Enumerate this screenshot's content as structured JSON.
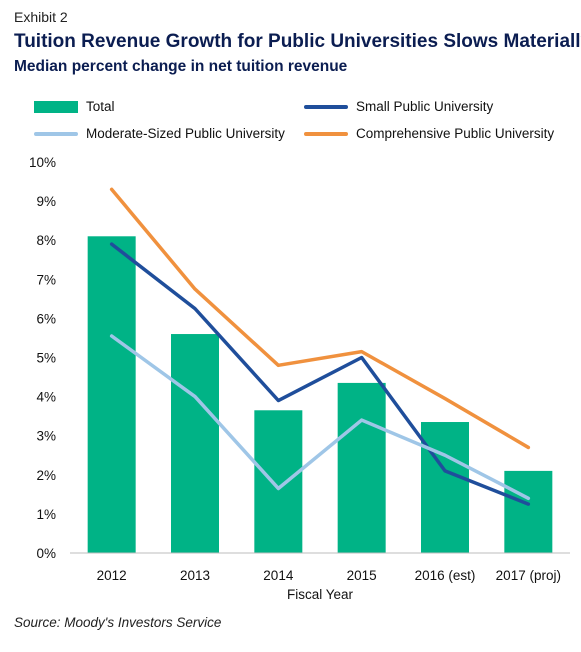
{
  "header": {
    "exhibit": "Exhibit 2",
    "title": "Tuition Revenue Growth for Public Universities Slows Materially",
    "subtitle": "Median percent change in net tuition revenue"
  },
  "source": "Source: Moody's Investors Service",
  "colors": {
    "total": "#00b386",
    "small": "#1f4e9b",
    "moderate": "#9fc6e7",
    "comprehensive": "#f0913e"
  },
  "chart_data": {
    "type": "bar",
    "title": "Tuition Revenue Growth for Public Universities Slows Materially",
    "subtitle": "Median percent change in net tuition revenue",
    "xlabel": "Fiscal Year",
    "ylabel": "",
    "categories": [
      "2012",
      "2013",
      "2014",
      "2015",
      "2016 (est)",
      "2017 (proj)"
    ],
    "ylim": [
      0,
      10
    ],
    "yticks": [
      "0%",
      "1%",
      "2%",
      "3%",
      "4%",
      "5%",
      "6%",
      "7%",
      "8%",
      "9%",
      "10%"
    ],
    "grid": false,
    "legend_position": "top",
    "series": [
      {
        "name": "Total",
        "type": "bar",
        "values": [
          8.1,
          5.6,
          3.65,
          4.35,
          3.35,
          2.1
        ]
      },
      {
        "name": "Small Public University",
        "type": "line",
        "values": [
          7.9,
          6.25,
          3.9,
          5.0,
          2.1,
          1.25
        ]
      },
      {
        "name": "Moderate-Sized Public University",
        "type": "line",
        "values": [
          5.55,
          4.0,
          1.65,
          3.4,
          2.5,
          1.4
        ]
      },
      {
        "name": "Comprehensive Public University",
        "type": "line",
        "values": [
          9.3,
          6.75,
          4.8,
          5.15,
          3.95,
          2.7
        ]
      }
    ]
  }
}
